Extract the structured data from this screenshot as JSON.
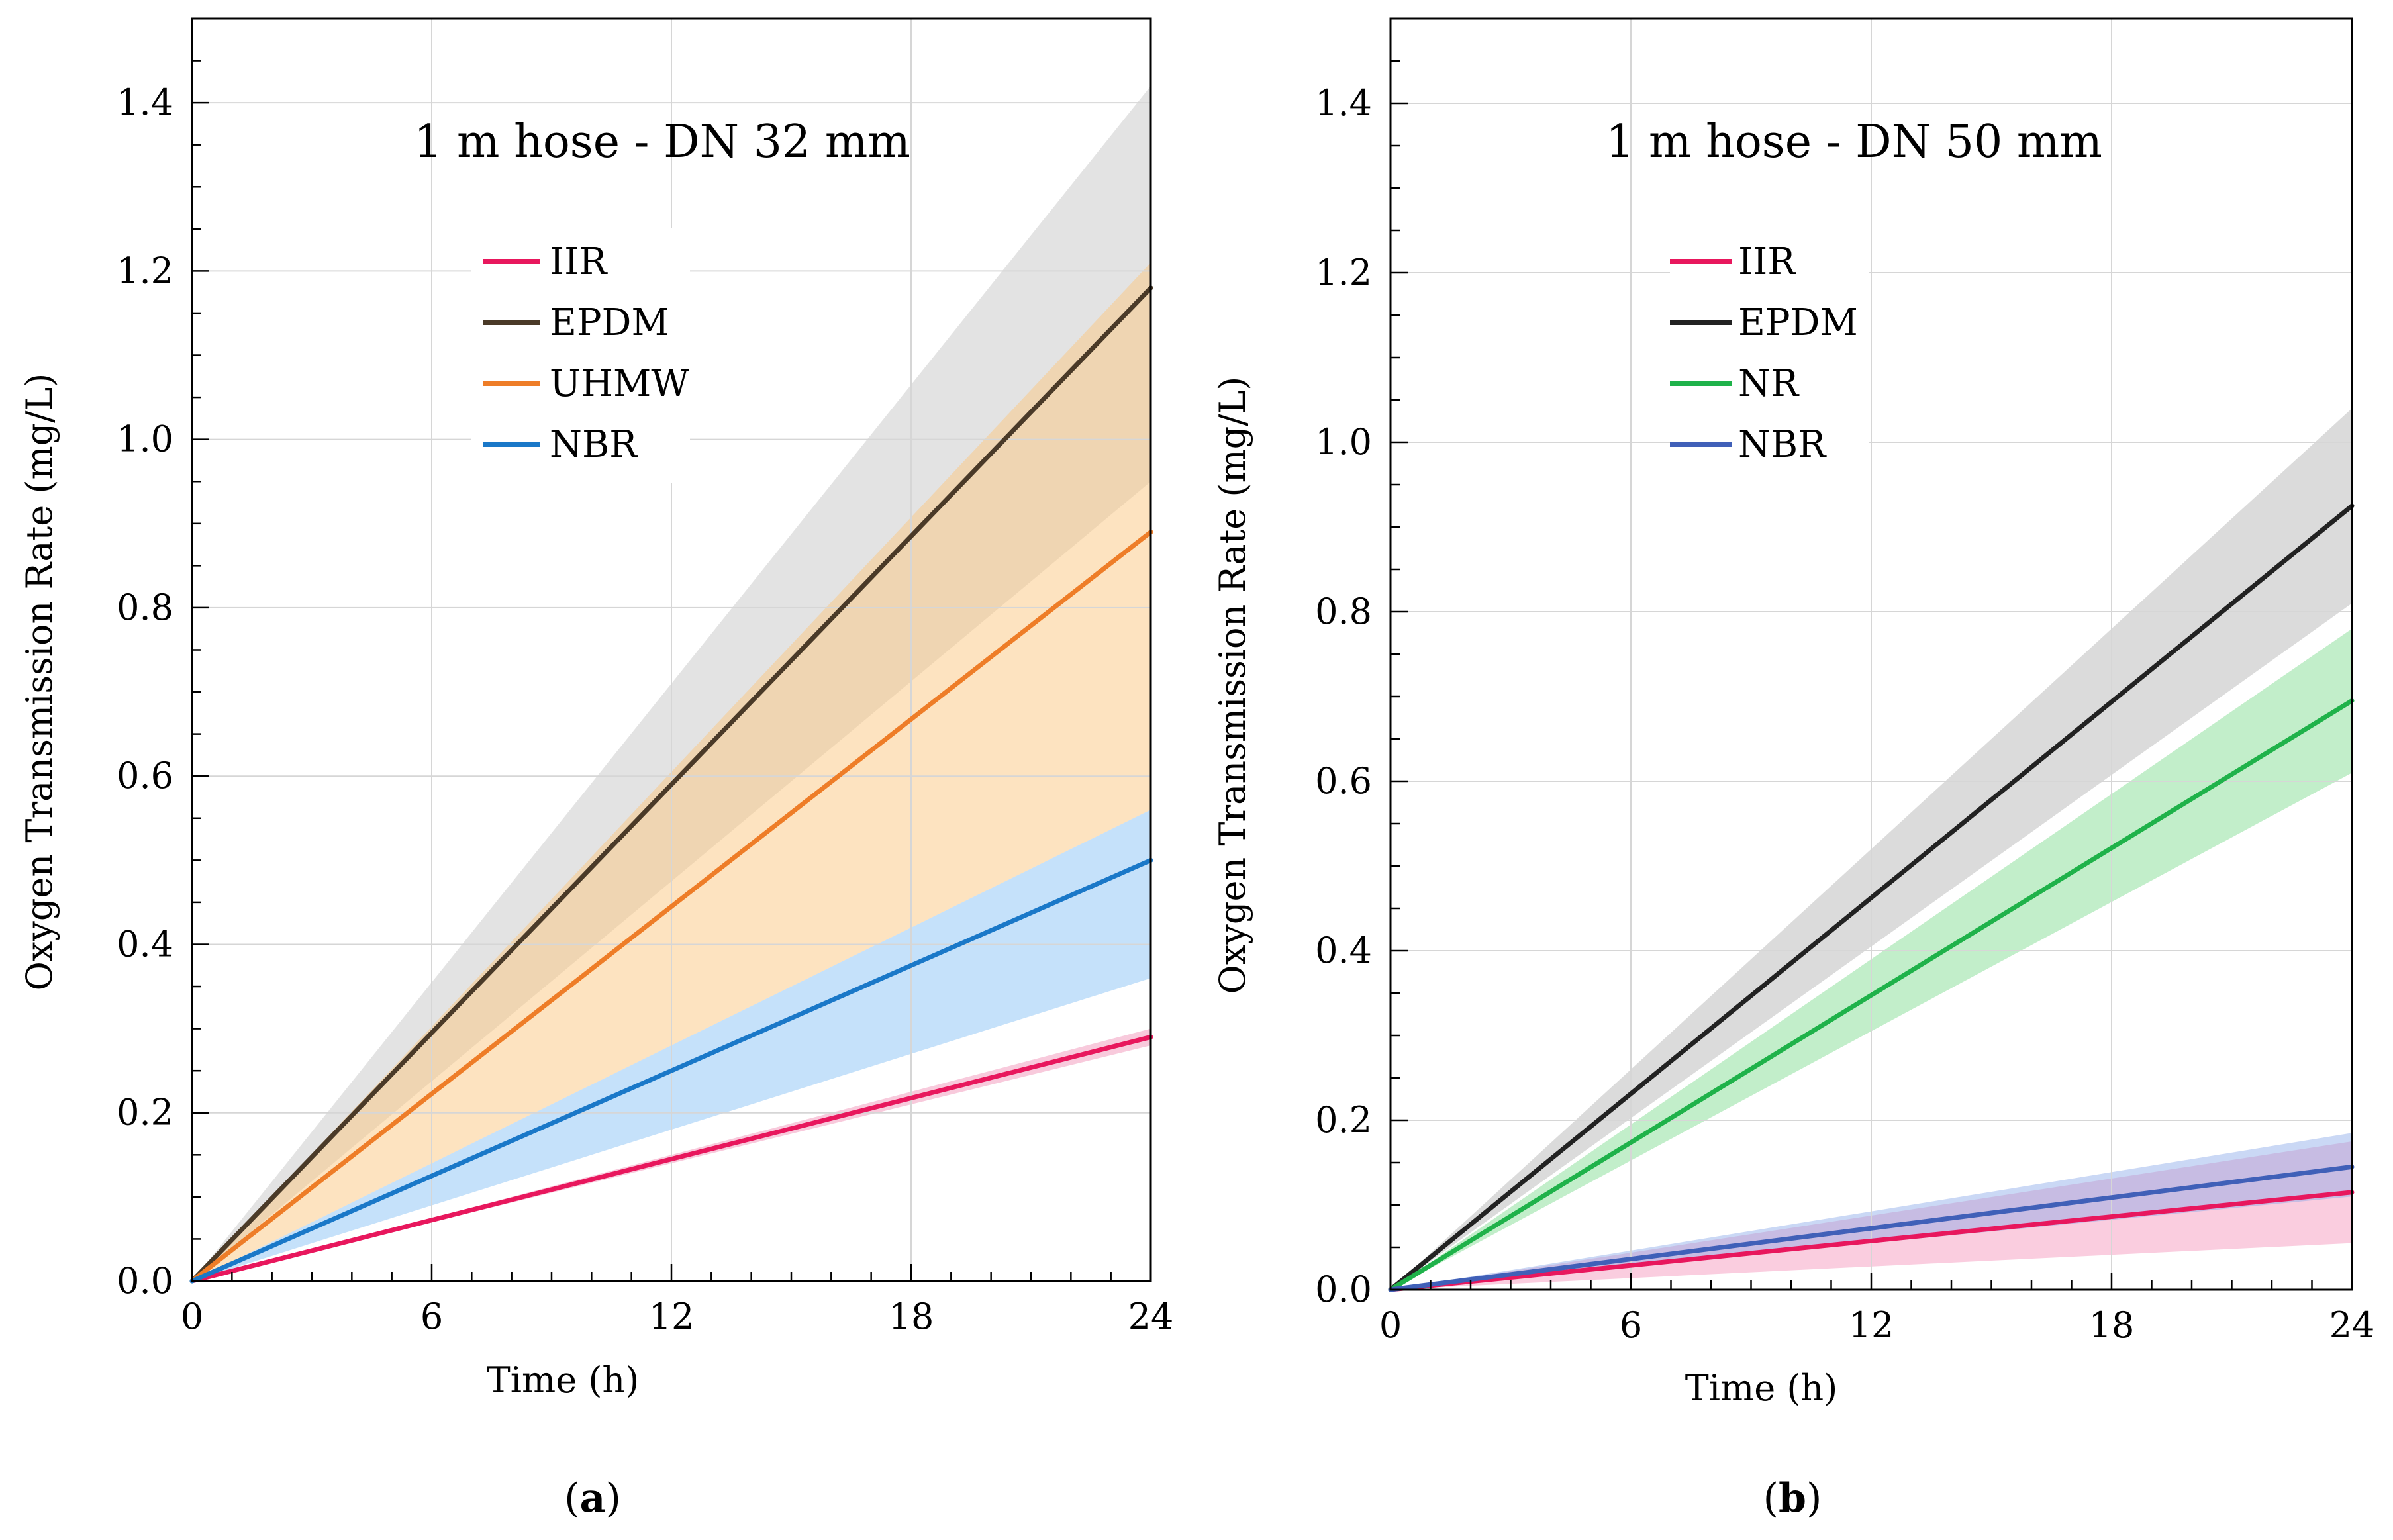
{
  "chart_data": [
    {
      "id": "a",
      "type": "line",
      "title": "1 m hose  -  DN 32 mm",
      "caption_letter": "a",
      "xlabel": "Time (h)",
      "ylabel": "Oxygen  Transmission Rate (mg/L)",
      "xlim": [
        0,
        24
      ],
      "ylim": [
        0,
        1.5
      ],
      "xticks": [
        0,
        6,
        12,
        18,
        24
      ],
      "xtick_labels": [
        "0",
        "6",
        "12",
        "18",
        "24"
      ],
      "yticks": [
        0,
        0.2,
        0.4,
        0.6,
        0.8,
        1.0,
        1.2,
        1.4
      ],
      "ytick_labels": [
        "0.0",
        "0.2",
        "0.4",
        "0.6",
        "0.8",
        "1.0",
        "1.2",
        "1.4"
      ],
      "grid": true,
      "legend_position": "upper-left",
      "x": [
        0,
        24
      ],
      "series": [
        {
          "name": "IIR",
          "color": "#e8175d",
          "band_color": "#f4a6c4",
          "band_opacity": 0.6,
          "values": [
            0,
            0.29
          ],
          "lower": [
            0,
            0.28
          ],
          "upper": [
            0,
            0.3
          ]
        },
        {
          "name": "EPDM",
          "color": "#4a3a28",
          "band_color": "#bdbdbd",
          "band_opacity": 0.42,
          "values": [
            0,
            1.18
          ],
          "lower": [
            0,
            0.95
          ],
          "upper": [
            0,
            1.42
          ]
        },
        {
          "name": "UHMW",
          "color": "#ee7d28",
          "band_color": "#fbc882",
          "band_opacity": 0.5,
          "values": [
            0,
            0.89
          ],
          "lower": [
            0,
            0.56
          ],
          "upper": [
            0,
            1.21
          ]
        },
        {
          "name": "NBR",
          "color": "#1a78c8",
          "band_color": "#8cc4f6",
          "band_opacity": 0.5,
          "values": [
            0,
            0.5
          ],
          "lower": [
            0,
            0.36
          ],
          "upper": [
            0,
            0.56
          ]
        }
      ]
    },
    {
      "id": "b",
      "type": "line",
      "title": "1 m hose  -  DN 50 mm",
      "caption_letter": "b",
      "xlabel": "Time (h)",
      "ylabel": "Oxygen  Transmission Rate (mg/L)",
      "xlim": [
        0,
        24
      ],
      "ylim": [
        0,
        1.5
      ],
      "xticks": [
        0,
        6,
        12,
        18,
        24
      ],
      "xtick_labels": [
        "0",
        "6",
        "12",
        "18",
        "24"
      ],
      "yticks": [
        0,
        0.2,
        0.4,
        0.6,
        0.8,
        1.0,
        1.2,
        1.4
      ],
      "ytick_labels": [
        "0.0",
        "0.2",
        "0.4",
        "0.6",
        "0.8",
        "1.0",
        "1.2",
        "1.4"
      ],
      "grid": true,
      "legend_position": "upper-left",
      "x": [
        0,
        24
      ],
      "series": [
        {
          "name": "IIR",
          "color": "#e8175d",
          "band_color": "#f59bbf",
          "band_opacity": 0.5,
          "values": [
            0,
            0.115
          ],
          "lower": [
            0,
            0.055
          ],
          "upper": [
            0,
            0.175
          ]
        },
        {
          "name": "EPDM",
          "color": "#222222",
          "band_color": "#bdbdbd",
          "band_opacity": 0.55,
          "values": [
            0,
            0.925
          ],
          "lower": [
            0,
            0.81
          ],
          "upper": [
            0,
            1.04
          ]
        },
        {
          "name": "NR",
          "color": "#1fb24a",
          "band_color": "#8fe09f",
          "band_opacity": 0.55,
          "values": [
            0,
            0.695
          ],
          "lower": [
            0,
            0.61
          ],
          "upper": [
            0,
            0.78
          ]
        },
        {
          "name": "NBR",
          "color": "#4060b8",
          "band_color": "#8aa8e8",
          "band_opacity": 0.45,
          "values": [
            0,
            0.145
          ],
          "lower": [
            0,
            0.11
          ],
          "upper": [
            0,
            0.185
          ]
        }
      ]
    }
  ]
}
